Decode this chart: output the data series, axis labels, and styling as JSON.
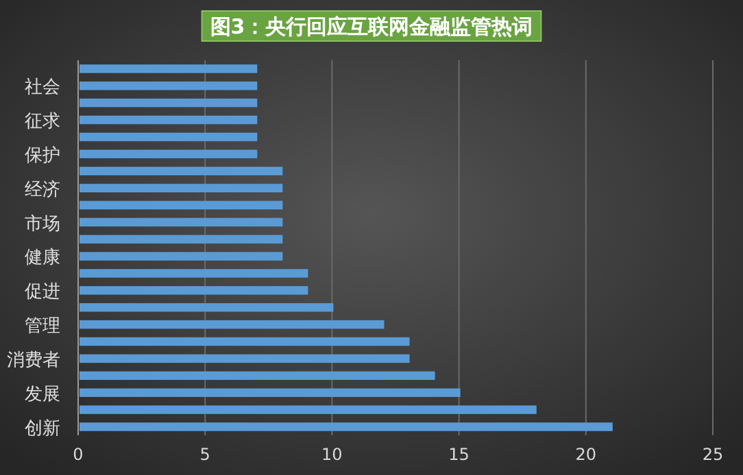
{
  "chart_data": {
    "type": "bar",
    "orientation": "horizontal",
    "title": "图3：央行回应互联网金融监管热词",
    "categories": [
      null,
      "社会",
      null,
      "征求",
      null,
      "保护",
      null,
      "经济",
      null,
      "市场",
      null,
      "健康",
      null,
      "促进",
      null,
      "管理",
      null,
      "消费者",
      null,
      "发展",
      null,
      "创新"
    ],
    "values": [
      7,
      7,
      7,
      7,
      7,
      7,
      8,
      8,
      8,
      8,
      8,
      8,
      9,
      9,
      10,
      12,
      13,
      13,
      14,
      15,
      18,
      21
    ],
    "color": "#5b9bd5",
    "xlim": [
      0,
      25
    ],
    "xticks": [
      0,
      5,
      10,
      15,
      20,
      25
    ],
    "grid": "x"
  }
}
